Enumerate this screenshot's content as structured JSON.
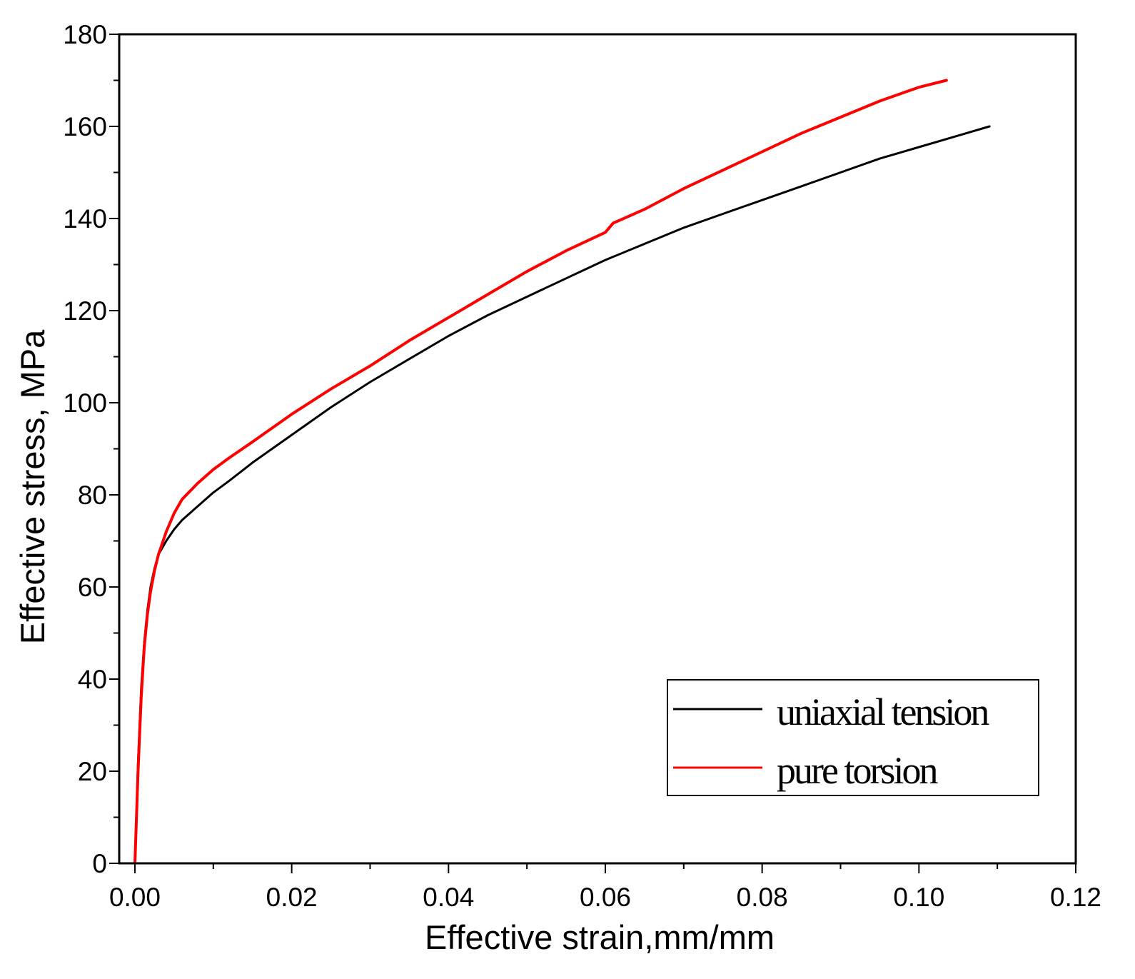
{
  "chart_data": {
    "type": "line",
    "title": "",
    "xlabel": "Effective  strain,mm/mm",
    "ylabel": "Effective  stress, MPa",
    "xlim": [
      -0.002,
      0.12
    ],
    "ylim": [
      0,
      180
    ],
    "xticks": [
      "0.00",
      "0.02",
      "0.04",
      "0.06",
      "0.08",
      "0.10",
      "0.12"
    ],
    "yticks": [
      "0",
      "20",
      "40",
      "60",
      "80",
      "100",
      "120",
      "140",
      "160",
      "180"
    ],
    "grid": false,
    "legend_position": "bottom-right",
    "series": [
      {
        "name": "uniaxial tension",
        "color": "#000000",
        "points": [
          [
            0.0,
            0
          ],
          [
            0.0004,
            22
          ],
          [
            0.0008,
            38
          ],
          [
            0.0012,
            48
          ],
          [
            0.0016,
            55
          ],
          [
            0.002,
            60
          ],
          [
            0.0025,
            64
          ],
          [
            0.003,
            67
          ],
          [
            0.004,
            70
          ],
          [
            0.005,
            72.5
          ],
          [
            0.006,
            74.5
          ],
          [
            0.008,
            77.5
          ],
          [
            0.01,
            80.5
          ],
          [
            0.012,
            83
          ],
          [
            0.015,
            87
          ],
          [
            0.02,
            93
          ],
          [
            0.025,
            99
          ],
          [
            0.03,
            104.5
          ],
          [
            0.035,
            109.5
          ],
          [
            0.04,
            114.5
          ],
          [
            0.045,
            119
          ],
          [
            0.05,
            123
          ],
          [
            0.055,
            127
          ],
          [
            0.06,
            131
          ],
          [
            0.065,
            134.5
          ],
          [
            0.07,
            138
          ],
          [
            0.075,
            141
          ],
          [
            0.08,
            144
          ],
          [
            0.085,
            147
          ],
          [
            0.09,
            150
          ],
          [
            0.095,
            153
          ],
          [
            0.1,
            155.5
          ],
          [
            0.105,
            158
          ],
          [
            0.109,
            160
          ]
        ]
      },
      {
        "name": "pure torsion",
        "color": "#ff0000",
        "points": [
          [
            0.0,
            0
          ],
          [
            0.0004,
            20
          ],
          [
            0.0008,
            36
          ],
          [
            0.0012,
            47
          ],
          [
            0.0016,
            54
          ],
          [
            0.002,
            59
          ],
          [
            0.0025,
            63.5
          ],
          [
            0.003,
            67
          ],
          [
            0.004,
            72
          ],
          [
            0.005,
            76
          ],
          [
            0.006,
            79
          ],
          [
            0.008,
            82.5
          ],
          [
            0.01,
            85.5
          ],
          [
            0.012,
            88
          ],
          [
            0.015,
            91.5
          ],
          [
            0.02,
            97.5
          ],
          [
            0.025,
            103
          ],
          [
            0.03,
            108
          ],
          [
            0.035,
            113.5
          ],
          [
            0.04,
            118.5
          ],
          [
            0.045,
            123.5
          ],
          [
            0.05,
            128.5
          ],
          [
            0.055,
            133
          ],
          [
            0.06,
            137
          ],
          [
            0.061,
            139
          ],
          [
            0.065,
            142
          ],
          [
            0.07,
            146.5
          ],
          [
            0.075,
            150.5
          ],
          [
            0.08,
            154.5
          ],
          [
            0.085,
            158.5
          ],
          [
            0.09,
            162
          ],
          [
            0.095,
            165.5
          ],
          [
            0.1,
            168.5
          ],
          [
            0.1035,
            170
          ]
        ]
      }
    ]
  }
}
